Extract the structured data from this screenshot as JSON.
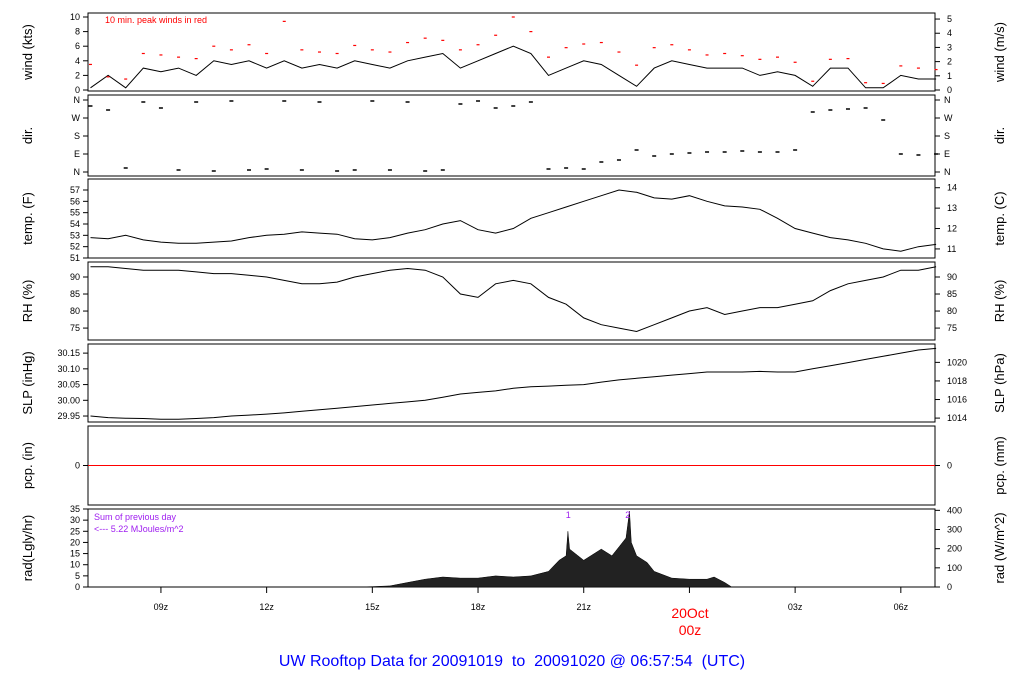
{
  "title": "UW Rooftop Data for 20091019  to  20091020 @ 06:57:54  (UTC)",
  "date_marker": {
    "day": "20Oct",
    "hour": "00z"
  },
  "colors": {
    "line": "#000000",
    "peak": "#ff0000",
    "pcp": "#ff0000",
    "annotation": "#a020f0",
    "title": "#0000ff",
    "date": "#ff0000",
    "rad_fill": "#222222"
  },
  "chart_data": {
    "type": "line",
    "x_unit": "hours since 20091019 00z",
    "xlim": [
      6.93,
      30.97
    ],
    "x_ticks": [
      {
        "t": 9,
        "label": "09z"
      },
      {
        "t": 12,
        "label": "12z"
      },
      {
        "t": 15,
        "label": "15z"
      },
      {
        "t": 18,
        "label": "18z"
      },
      {
        "t": 21,
        "label": "21z"
      },
      {
        "t": 24,
        "label": ""
      },
      {
        "t": 27,
        "label": "03z"
      },
      {
        "t": 30,
        "label": "06z"
      }
    ],
    "series_start": 7,
    "series_step": 0.5,
    "panels": [
      {
        "key": "wind",
        "ylabel": "wind (kts)",
        "ylabel_right": "wind (m/s)",
        "ylim": [
          -0.1,
          10.55
        ],
        "left_ticks": [
          0,
          2,
          4,
          6,
          8,
          10
        ],
        "right_ticks": [
          0,
          1,
          2,
          3,
          4,
          5
        ],
        "right_factor": 1.944,
        "annotation": "10 min. peak winds in red",
        "values": [
          0.3,
          2,
          0.3,
          3,
          2.5,
          3,
          2,
          4,
          3.5,
          4,
          3,
          4,
          3,
          3.5,
          3,
          4,
          3.5,
          3,
          4,
          4.5,
          5,
          3,
          4,
          5,
          6,
          5,
          2,
          3,
          4,
          3.5,
          2,
          0.5,
          3,
          4,
          3.5,
          3,
          3,
          3,
          2,
          2.5,
          2,
          0.5,
          3,
          3,
          0.3,
          0.3,
          2,
          1.5,
          1.5
        ],
        "peaks": [
          3.5,
          1.8,
          1.5,
          5,
          4.8,
          4.5,
          4.3,
          6,
          5.5,
          6.2,
          5,
          9.4,
          5.5,
          5.2,
          5,
          6.1,
          5.5,
          5.2,
          6.5,
          7.1,
          6.8,
          5.5,
          6.2,
          7.5,
          10,
          8,
          4.5,
          5.8,
          6.3,
          6.5,
          5.2,
          3.4,
          5.8,
          6.2,
          5.5,
          4.8,
          5,
          4.7,
          4.2,
          4.5,
          3.8,
          1.2,
          4.2,
          4.3,
          1.0,
          0.9,
          3.3,
          3,
          2.8
        ]
      },
      {
        "key": "dir",
        "ylabel": "dir.",
        "ylabel_right": "dir.",
        "ylim": [
          -20,
          380
        ],
        "left_ticks": [
          {
            "v": 0,
            "label": "N"
          },
          {
            "v": 90,
            "label": "E"
          },
          {
            "v": 180,
            "label": "S"
          },
          {
            "v": 270,
            "label": "W"
          },
          {
            "v": 360,
            "label": "N"
          }
        ],
        "values": [
          330,
          310,
          20,
          350,
          320,
          10,
          350,
          5,
          355,
          10,
          15,
          355,
          10,
          350,
          5,
          10,
          355,
          10,
          350,
          5,
          10,
          340,
          355,
          320,
          330,
          350,
          15,
          20,
          15,
          50,
          60,
          110,
          80,
          90,
          95,
          100,
          100,
          105,
          100,
          100,
          110,
          300,
          310,
          315,
          320,
          260,
          90,
          85,
          90
        ]
      },
      {
        "key": "temp",
        "ylabel": "temp. (F)",
        "ylabel_right": "temp. (C)",
        "ylim": [
          51,
          57.97
        ],
        "left_ticks": [
          51,
          52,
          53,
          54,
          55,
          56,
          57
        ],
        "right_ticks": [
          11,
          12,
          13,
          14
        ],
        "right_conv": "c_to_f",
        "values": [
          52.8,
          52.7,
          53.0,
          52.6,
          52.4,
          52.3,
          52.3,
          52.4,
          52.5,
          52.8,
          53.0,
          53.1,
          53.3,
          53.2,
          53.1,
          52.7,
          52.6,
          52.8,
          53.2,
          53.5,
          54.0,
          54.3,
          53.5,
          53.2,
          53.6,
          54.5,
          55.0,
          55.5,
          56.0,
          56.5,
          57.0,
          56.8,
          56.3,
          56.2,
          56.5,
          56.0,
          55.6,
          55.5,
          55.3,
          54.5,
          53.6,
          53.2,
          52.8,
          52.6,
          52.3,
          51.8,
          51.6,
          52.0,
          52.2
        ]
      },
      {
        "key": "rh",
        "ylabel": "RH (%)",
        "ylabel_right": "RH (%)",
        "ylim": [
          71.5,
          94.4
        ],
        "left_ticks": [
          75,
          80,
          85,
          90
        ],
        "right_ticks": [
          75,
          80,
          85,
          90
        ],
        "right_factor": 1,
        "values": [
          93,
          93,
          92.5,
          92,
          92,
          92,
          91.5,
          91,
          91,
          90.5,
          90,
          89,
          88,
          88,
          88.5,
          90,
          91,
          92,
          92.5,
          92,
          90,
          85,
          84,
          88,
          89,
          88,
          84,
          82,
          78,
          76,
          75,
          74,
          76,
          78,
          80,
          81,
          79,
          80,
          81,
          81,
          82,
          83,
          86,
          88,
          89,
          90,
          92,
          92,
          93
        ]
      },
      {
        "key": "slp",
        "ylabel": "SLP (inHg)",
        "ylabel_right": "SLP (hPa)",
        "ylim": [
          29.931,
          30.179
        ],
        "left_ticks": [
          "29.95",
          "30.00",
          "30.05",
          "30.10",
          "30.15"
        ],
        "right_ticks": [
          1014,
          1016,
          1018,
          1020
        ],
        "right_factor": 0.02953,
        "values": [
          29.95,
          29.945,
          29.943,
          29.942,
          29.94,
          29.94,
          29.942,
          29.945,
          29.95,
          29.953,
          29.956,
          29.96,
          29.965,
          29.97,
          29.975,
          29.98,
          29.985,
          29.99,
          29.995,
          30.0,
          30.01,
          30.02,
          30.025,
          30.03,
          30.038,
          30.043,
          30.045,
          30.048,
          30.05,
          30.058,
          30.065,
          30.07,
          30.075,
          30.08,
          30.085,
          30.09,
          30.09,
          30.09,
          30.092,
          30.09,
          30.09,
          30.1,
          30.11,
          30.12,
          30.13,
          30.14,
          30.15,
          30.16,
          30.165
        ]
      },
      {
        "key": "pcp",
        "ylabel": "pcp. (in)",
        "ylabel_right": "pcp. (mm)",
        "ylim": [
          -0.5,
          0.5
        ],
        "left_ticks": [
          0
        ],
        "right_ticks": [
          0
        ],
        "right_factor": 0.03937,
        "values": [
          0,
          0
        ]
      },
      {
        "key": "rad",
        "ylabel": "rad(Lgly/hr)",
        "ylabel_right": "rad (W/m^2)",
        "ylim": [
          0,
          35
        ],
        "left_ticks": [
          0,
          5,
          10,
          15,
          20,
          25,
          30,
          35
        ],
        "right_ticks": [
          0,
          100,
          200,
          300,
          400
        ],
        "right_factor": 0.086,
        "annotation": [
          "Sum of previous day",
          "<--- 5.22 MJoules/m^2"
        ],
        "markers": [
          {
            "t": 20.56,
            "label": "1"
          },
          {
            "t": 22.25,
            "label": "2"
          }
        ],
        "points": [
          [
            14.6,
            0
          ],
          [
            15,
            0.2
          ],
          [
            15.5,
            0.5
          ],
          [
            16,
            2
          ],
          [
            16.5,
            3.5
          ],
          [
            17,
            4.5
          ],
          [
            17.5,
            4
          ],
          [
            18,
            4
          ],
          [
            18.5,
            5
          ],
          [
            19,
            4.5
          ],
          [
            19.5,
            5
          ],
          [
            20,
            7
          ],
          [
            20.3,
            12
          ],
          [
            20.5,
            14
          ],
          [
            20.55,
            25
          ],
          [
            20.6,
            17
          ],
          [
            21,
            12
          ],
          [
            21.5,
            17
          ],
          [
            21.8,
            14
          ],
          [
            22,
            18
          ],
          [
            22.2,
            22
          ],
          [
            22.3,
            34
          ],
          [
            22.35,
            20
          ],
          [
            22.5,
            14
          ],
          [
            22.8,
            11
          ],
          [
            23,
            7
          ],
          [
            23.5,
            4
          ],
          [
            24,
            3.5
          ],
          [
            24.5,
            3.5
          ],
          [
            24.7,
            4.5
          ],
          [
            25,
            2
          ],
          [
            25.2,
            0
          ]
        ]
      }
    ]
  }
}
